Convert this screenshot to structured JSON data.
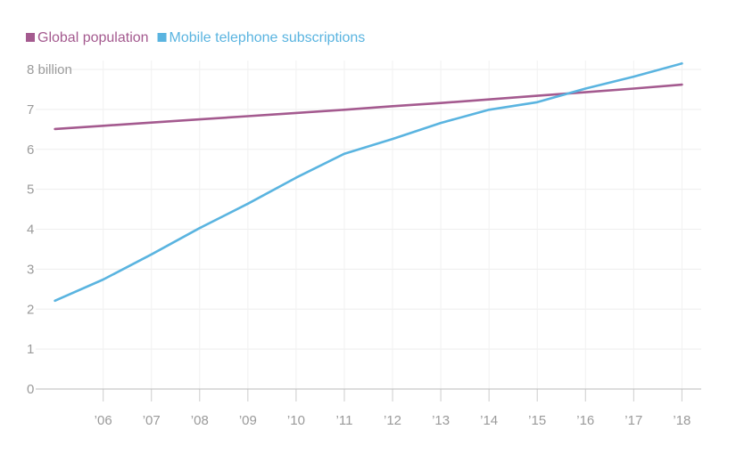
{
  "chart_data": {
    "type": "line",
    "title": "",
    "xlabel": "",
    "ylabel": "",
    "x": [
      2005,
      2006,
      2007,
      2008,
      2009,
      2010,
      2011,
      2012,
      2013,
      2014,
      2015,
      2016,
      2017,
      2018
    ],
    "x_tick_values": [
      2006,
      2007,
      2008,
      2009,
      2010,
      2011,
      2012,
      2013,
      2014,
      2015,
      2016,
      2017,
      2018
    ],
    "x_tick_labels": [
      "’06",
      "’07",
      "’08",
      "’09",
      "’10",
      "’11",
      "’12",
      "’13",
      "’14",
      "’15",
      "’16",
      "’17",
      "’18"
    ],
    "xlim": [
      2004.6,
      2018.4
    ],
    "ylim": [
      0,
      8
    ],
    "y_ticks": [
      {
        "value": 0,
        "label": "0"
      },
      {
        "value": 1,
        "label": "1"
      },
      {
        "value": 2,
        "label": "2"
      },
      {
        "value": 3,
        "label": "3"
      },
      {
        "value": 4,
        "label": "4"
      },
      {
        "value": 5,
        "label": "5"
      },
      {
        "value": 6,
        "label": "6"
      },
      {
        "value": 7,
        "label": "7"
      },
      {
        "value": 8,
        "label": "8 billion"
      }
    ],
    "grid": true,
    "legend_position": "top-left",
    "series": [
      {
        "name": "Global population",
        "color": "#a45a8f",
        "values": [
          6.51,
          6.59,
          6.67,
          6.75,
          6.83,
          6.91,
          6.99,
          7.08,
          7.16,
          7.25,
          7.34,
          7.43,
          7.52,
          7.62
        ]
      },
      {
        "name": "Mobile telephone subscriptions",
        "color": "#5ab4e0",
        "values": [
          2.21,
          2.74,
          3.37,
          4.03,
          4.64,
          5.29,
          5.89,
          6.26,
          6.66,
          6.99,
          7.18,
          7.52,
          7.82,
          8.15
        ]
      }
    ]
  }
}
